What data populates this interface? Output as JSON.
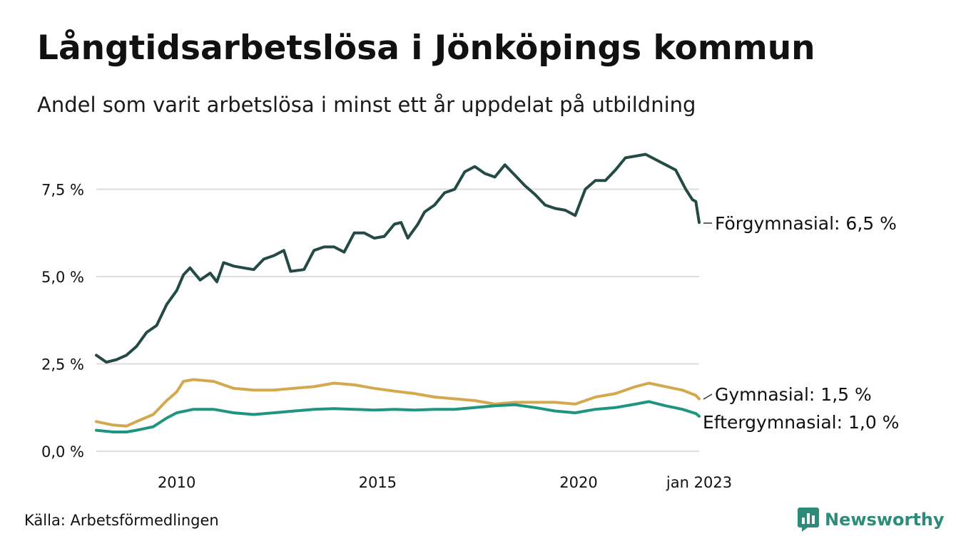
{
  "title": "Långtidsarbetslösa i Jönköpings kommun",
  "subtitle": "Andel som varit arbetslösa i minst ett år uppdelat på utbildning",
  "source": "Källa: Arbetsförmedlingen",
  "brand": {
    "name": "Newsworthy",
    "color": "#2e8b7a",
    "icon": "newsworthy-logo-icon"
  },
  "chart_data": {
    "type": "line",
    "xlabel": "",
    "ylabel": "",
    "x_range": [
      "2008-01",
      "2023-01"
    ],
    "ylim": [
      0,
      9
    ],
    "grid": true,
    "legend": "direct labels at line ends",
    "x_ticks": [
      {
        "x": "2010-01",
        "label": "2010"
      },
      {
        "x": "2015-01",
        "label": "2015"
      },
      {
        "x": "2020-01",
        "label": "2020"
      },
      {
        "x": "2023-01",
        "label": "jan 2023"
      }
    ],
    "y_ticks": [
      {
        "value": 0,
        "label": "0,0 %"
      },
      {
        "value": 2.5,
        "label": "2,5 %"
      },
      {
        "value": 5,
        "label": "5,0 %"
      },
      {
        "value": 7.5,
        "label": "7,5 %"
      }
    ],
    "series": [
      {
        "name": "Förgymnasial",
        "label": "Förgymnasial: 6,5 %",
        "color": "#234a44",
        "points": [
          [
            "2008-01",
            2.75
          ],
          [
            "2008-04",
            2.55
          ],
          [
            "2008-07",
            2.62
          ],
          [
            "2008-10",
            2.75
          ],
          [
            "2009-01",
            3.0
          ],
          [
            "2009-04",
            3.4
          ],
          [
            "2009-07",
            3.6
          ],
          [
            "2009-10",
            4.2
          ],
          [
            "2010-01",
            4.6
          ],
          [
            "2010-03",
            5.05
          ],
          [
            "2010-05",
            5.25
          ],
          [
            "2010-08",
            4.9
          ],
          [
            "2010-11",
            5.1
          ],
          [
            "2011-01",
            4.85
          ],
          [
            "2011-03",
            5.4
          ],
          [
            "2011-06",
            5.3
          ],
          [
            "2011-09",
            5.25
          ],
          [
            "2011-12",
            5.2
          ],
          [
            "2012-03",
            5.5
          ],
          [
            "2012-06",
            5.6
          ],
          [
            "2012-09",
            5.75
          ],
          [
            "2012-11",
            5.15
          ],
          [
            "2013-03",
            5.2
          ],
          [
            "2013-06",
            5.75
          ],
          [
            "2013-09",
            5.85
          ],
          [
            "2013-12",
            5.85
          ],
          [
            "2014-03",
            5.7
          ],
          [
            "2014-06",
            6.25
          ],
          [
            "2014-09",
            6.25
          ],
          [
            "2014-12",
            6.1
          ],
          [
            "2015-03",
            6.15
          ],
          [
            "2015-06",
            6.5
          ],
          [
            "2015-08",
            6.55
          ],
          [
            "2015-10",
            6.1
          ],
          [
            "2016-01",
            6.5
          ],
          [
            "2016-03",
            6.85
          ],
          [
            "2016-06",
            7.05
          ],
          [
            "2016-09",
            7.4
          ],
          [
            "2016-12",
            7.5
          ],
          [
            "2017-03",
            8.0
          ],
          [
            "2017-06",
            8.15
          ],
          [
            "2017-09",
            7.95
          ],
          [
            "2017-12",
            7.85
          ],
          [
            "2018-03",
            8.2
          ],
          [
            "2018-06",
            7.9
          ],
          [
            "2018-09",
            7.6
          ],
          [
            "2018-12",
            7.35
          ],
          [
            "2019-03",
            7.05
          ],
          [
            "2019-06",
            6.95
          ],
          [
            "2019-09",
            6.9
          ],
          [
            "2019-12",
            6.75
          ],
          [
            "2020-03",
            7.5
          ],
          [
            "2020-06",
            7.75
          ],
          [
            "2020-09",
            7.75
          ],
          [
            "2020-12",
            8.05
          ],
          [
            "2021-03",
            8.4
          ],
          [
            "2021-06",
            8.45
          ],
          [
            "2021-09",
            8.5
          ],
          [
            "2021-12",
            8.35
          ],
          [
            "2022-03",
            8.2
          ],
          [
            "2022-06",
            8.05
          ],
          [
            "2022-09",
            7.5
          ],
          [
            "2022-11",
            7.2
          ],
          [
            "2022-12",
            7.15
          ],
          [
            "2023-01",
            6.55
          ]
        ]
      },
      {
        "name": "Gymnasial",
        "label": "Gymnasial: 1,5 %",
        "color": "#d4a84e",
        "points": [
          [
            "2008-01",
            0.85
          ],
          [
            "2008-06",
            0.75
          ],
          [
            "2008-10",
            0.72
          ],
          [
            "2009-01",
            0.85
          ],
          [
            "2009-06",
            1.05
          ],
          [
            "2009-10",
            1.45
          ],
          [
            "2010-01",
            1.7
          ],
          [
            "2010-03",
            2.0
          ],
          [
            "2010-06",
            2.05
          ],
          [
            "2010-12",
            2.0
          ],
          [
            "2011-06",
            1.8
          ],
          [
            "2011-12",
            1.75
          ],
          [
            "2012-06",
            1.75
          ],
          [
            "2012-12",
            1.8
          ],
          [
            "2013-06",
            1.85
          ],
          [
            "2013-12",
            1.95
          ],
          [
            "2014-06",
            1.9
          ],
          [
            "2014-12",
            1.8
          ],
          [
            "2015-06",
            1.72
          ],
          [
            "2015-12",
            1.65
          ],
          [
            "2016-06",
            1.55
          ],
          [
            "2016-12",
            1.5
          ],
          [
            "2017-06",
            1.45
          ],
          [
            "2017-12",
            1.35
          ],
          [
            "2018-06",
            1.4
          ],
          [
            "2018-12",
            1.4
          ],
          [
            "2019-06",
            1.4
          ],
          [
            "2019-12",
            1.35
          ],
          [
            "2020-06",
            1.55
          ],
          [
            "2020-12",
            1.65
          ],
          [
            "2021-06",
            1.85
          ],
          [
            "2021-10",
            1.95
          ],
          [
            "2022-03",
            1.85
          ],
          [
            "2022-08",
            1.75
          ],
          [
            "2022-12",
            1.6
          ],
          [
            "2023-01",
            1.5
          ]
        ]
      },
      {
        "name": "Eftergymnasial",
        "label": "Eftergymnasial: 1,0 %",
        "color": "#1f9580",
        "points": [
          [
            "2008-01",
            0.6
          ],
          [
            "2008-06",
            0.55
          ],
          [
            "2008-10",
            0.55
          ],
          [
            "2009-01",
            0.6
          ],
          [
            "2009-06",
            0.7
          ],
          [
            "2009-10",
            0.95
          ],
          [
            "2010-01",
            1.1
          ],
          [
            "2010-06",
            1.2
          ],
          [
            "2010-12",
            1.2
          ],
          [
            "2011-06",
            1.1
          ],
          [
            "2011-12",
            1.05
          ],
          [
            "2012-06",
            1.1
          ],
          [
            "2012-12",
            1.15
          ],
          [
            "2013-06",
            1.2
          ],
          [
            "2013-12",
            1.22
          ],
          [
            "2014-06",
            1.2
          ],
          [
            "2014-12",
            1.18
          ],
          [
            "2015-06",
            1.2
          ],
          [
            "2015-12",
            1.18
          ],
          [
            "2016-06",
            1.2
          ],
          [
            "2016-12",
            1.2
          ],
          [
            "2017-06",
            1.25
          ],
          [
            "2017-12",
            1.3
          ],
          [
            "2018-06",
            1.33
          ],
          [
            "2018-12",
            1.25
          ],
          [
            "2019-06",
            1.15
          ],
          [
            "2019-12",
            1.1
          ],
          [
            "2020-06",
            1.2
          ],
          [
            "2020-12",
            1.25
          ],
          [
            "2021-06",
            1.35
          ],
          [
            "2021-10",
            1.42
          ],
          [
            "2022-03",
            1.3
          ],
          [
            "2022-08",
            1.2
          ],
          [
            "2022-12",
            1.08
          ],
          [
            "2023-01",
            1.0
          ]
        ]
      }
    ]
  }
}
